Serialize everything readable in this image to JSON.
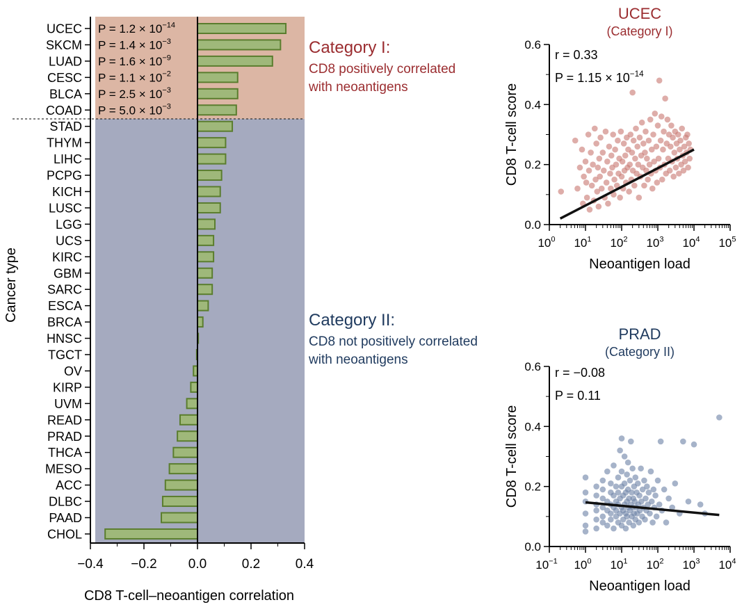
{
  "colors": {
    "cat1_bg": "#dcb6a4",
    "cat2_bg": "#a5aabf",
    "bar_fill": "#9fb87a",
    "bar_stroke": "#5a7d2e",
    "cat1_text": "#9b2d30",
    "cat2_text": "#1f3a5e",
    "ucec_points": "#c97a74",
    "prad_points": "#6f84a8"
  },
  "annotations": {
    "cat1_title": "Category I:",
    "cat1_line1": "CD8 positively correlated",
    "cat1_line2": "with neoantigens",
    "cat2_title": "Category II:",
    "cat2_line1": "CD8 not positively correlated",
    "cat2_line2": "with neoantigens"
  },
  "chart_data": [
    {
      "type": "bar",
      "orientation": "horizontal",
      "xlabel": "CD8 T-cell–neoantigen correlation",
      "ylabel": "Cancer type",
      "xlim": [
        -0.4,
        0.4
      ],
      "x_ticks": [
        "−0.4",
        "−0.2",
        "0.0",
        "0.2",
        "0.4"
      ],
      "categories": [
        "UCEC",
        "SKCM",
        "LUAD",
        "CESC",
        "BLCA",
        "COAD",
        "STAD",
        "THYM",
        "LIHC",
        "PCPG",
        "KICH",
        "LUSC",
        "LGG",
        "UCS",
        "KIRC",
        "GBM",
        "SARC",
        "ESCA",
        "BRCA",
        "HNSC",
        "TGCT",
        "OV",
        "KIRP",
        "UVM",
        "READ",
        "PRAD",
        "THCA",
        "MESO",
        "ACC",
        "DLBC",
        "PAAD",
        "CHOL"
      ],
      "values": [
        0.33,
        0.31,
        0.28,
        0.15,
        0.15,
        0.145,
        0.13,
        0.105,
        0.105,
        0.09,
        0.085,
        0.085,
        0.065,
        0.06,
        0.06,
        0.055,
        0.055,
        0.04,
        0.02,
        0.003,
        -0.003,
        -0.015,
        -0.025,
        -0.04,
        -0.065,
        -0.075,
        -0.09,
        -0.105,
        -0.12,
        -0.13,
        -0.135,
        -0.345
      ],
      "p_values": [
        {
          "prefix": "P = 1.2 × 10",
          "exp": "−14"
        },
        {
          "prefix": "P = 1.4 × 10",
          "exp": "−3"
        },
        {
          "prefix": "P = 1.6 × 10",
          "exp": "−9"
        },
        {
          "prefix": "P = 1.1 × 10",
          "exp": "−2"
        },
        {
          "prefix": "P = 2.5 × 10",
          "exp": "−3"
        },
        {
          "prefix": "P = 5.0 × 10",
          "exp": "−3"
        }
      ],
      "category_I_count": 6
    },
    {
      "type": "scatter",
      "title": "UCEC",
      "subtitle": "(Category I)",
      "xlabel": "Neoantigen load",
      "ylabel": "CD8 T-cell score",
      "x_scale": "log",
      "xlim": [
        1,
        100000
      ],
      "ylim": [
        0,
        0.6
      ],
      "y_ticks": [
        "0.0",
        "0.2",
        "0.4",
        "0.6"
      ],
      "x_ticks": [
        {
          "base": "10",
          "exp": "0"
        },
        {
          "base": "10",
          "exp": "1"
        },
        {
          "base": "10",
          "exp": "2"
        },
        {
          "base": "10",
          "exp": "3"
        },
        {
          "base": "10",
          "exp": "4"
        },
        {
          "base": "10",
          "exp": "5"
        }
      ],
      "stat_r": "r = 0.33",
      "stat_p_prefix": "P = 1.15 × 10",
      "stat_p_exp": "−14",
      "fit_line": {
        "x": [
          2,
          10000
        ],
        "y": [
          0.02,
          0.25
        ]
      },
      "points": [
        [
          2.1,
          0.11
        ],
        [
          5.2,
          0.28
        ],
        [
          6,
          0.12
        ],
        [
          7,
          0.19
        ],
        [
          8,
          0.25
        ],
        [
          8.5,
          0.07
        ],
        [
          9,
          0.16
        ],
        [
          10,
          0.21
        ],
        [
          10.5,
          0.14
        ],
        [
          11,
          0.09
        ],
        [
          12,
          0.3
        ],
        [
          12.5,
          0.18
        ],
        [
          13,
          0.05
        ],
        [
          14,
          0.24
        ],
        [
          15,
          0.13
        ],
        [
          16,
          0.2
        ],
        [
          17,
          0.08
        ],
        [
          18,
          0.32
        ],
        [
          19,
          0.15
        ],
        [
          20,
          0.27
        ],
        [
          21,
          0.11
        ],
        [
          22,
          0.19
        ],
        [
          23,
          0.06
        ],
        [
          24,
          0.22
        ],
        [
          25,
          0.16
        ],
        [
          26,
          0.29
        ],
        [
          28,
          0.12
        ],
        [
          30,
          0.24
        ],
        [
          32,
          0.18
        ],
        [
          34,
          0.09
        ],
        [
          36,
          0.31
        ],
        [
          38,
          0.14
        ],
        [
          40,
          0.21
        ],
        [
          42,
          0.07
        ],
        [
          45,
          0.26
        ],
        [
          48,
          0.17
        ],
        [
          50,
          0.12
        ],
        [
          52,
          0.23
        ],
        [
          55,
          0.19
        ],
        [
          58,
          0.3
        ],
        [
          60,
          0.1
        ],
        [
          63,
          0.15
        ],
        [
          66,
          0.25
        ],
        [
          70,
          0.2
        ],
        [
          74,
          0.13
        ],
        [
          78,
          0.28
        ],
        [
          82,
          0.17
        ],
        [
          86,
          0.22
        ],
        [
          90,
          0.09
        ],
        [
          95,
          0.31
        ],
        [
          100,
          0.16
        ],
        [
          105,
          0.21
        ],
        [
          110,
          0.12
        ],
        [
          115,
          0.27
        ],
        [
          120,
          0.18
        ],
        [
          126,
          0.23
        ],
        [
          132,
          0.14
        ],
        [
          138,
          0.29
        ],
        [
          145,
          0.19
        ],
        [
          152,
          0.25
        ],
        [
          160,
          0.11
        ],
        [
          168,
          0.2
        ],
        [
          176,
          0.3
        ],
        [
          185,
          0.15
        ],
        [
          194,
          0.24
        ],
        [
          200,
          0.44
        ],
        [
          204,
          0.18
        ],
        [
          214,
          0.28
        ],
        [
          225,
          0.13
        ],
        [
          236,
          0.22
        ],
        [
          248,
          0.32
        ],
        [
          260,
          0.17
        ],
        [
          273,
          0.26
        ],
        [
          287,
          0.2
        ],
        [
          300,
          0.09
        ],
        [
          315,
          0.29
        ],
        [
          330,
          0.16
        ],
        [
          347,
          0.23
        ],
        [
          364,
          0.34
        ],
        [
          382,
          0.19
        ],
        [
          400,
          0.27
        ],
        [
          420,
          0.13
        ],
        [
          440,
          0.24
        ],
        [
          460,
          0.31
        ],
        [
          480,
          0.18
        ],
        [
          500,
          0.22
        ],
        [
          530,
          0.15
        ],
        [
          560,
          0.28
        ],
        [
          590,
          0.2
        ],
        [
          620,
          0.35
        ],
        [
          650,
          0.17
        ],
        [
          680,
          0.25
        ],
        [
          710,
          0.12
        ],
        [
          750,
          0.3
        ],
        [
          790,
          0.21
        ],
        [
          830,
          0.37
        ],
        [
          870,
          0.18
        ],
        [
          910,
          0.26
        ],
        [
          950,
          0.14
        ],
        [
          1000,
          0.33
        ],
        [
          1050,
          0.22
        ],
        [
          1100,
          0.48
        ],
        [
          1150,
          0.19
        ],
        [
          1200,
          0.28
        ],
        [
          1260,
          0.36
        ],
        [
          1320,
          0.15
        ],
        [
          1390,
          0.25
        ],
        [
          1460,
          0.31
        ],
        [
          1530,
          0.2
        ],
        [
          1600,
          0.42
        ],
        [
          1680,
          0.17
        ],
        [
          1760,
          0.27
        ],
        [
          1850,
          0.35
        ],
        [
          1940,
          0.22
        ],
        [
          2040,
          0.3
        ],
        [
          2140,
          0.18
        ],
        [
          2250,
          0.26
        ],
        [
          2360,
          0.33
        ],
        [
          2480,
          0.21
        ],
        [
          2600,
          0.29
        ],
        [
          2730,
          0.16
        ],
        [
          2870,
          0.24
        ],
        [
          3000,
          0.31
        ],
        [
          3150,
          0.19
        ],
        [
          3310,
          0.27
        ],
        [
          3470,
          0.22
        ],
        [
          3650,
          0.3
        ],
        [
          3830,
          0.17
        ],
        [
          4020,
          0.25
        ],
        [
          4220,
          0.28
        ],
        [
          4430,
          0.2
        ],
        [
          4650,
          0.32
        ],
        [
          4890,
          0.23
        ],
        [
          5130,
          0.18
        ],
        [
          5390,
          0.26
        ],
        [
          5660,
          0.21
        ],
        [
          5940,
          0.29
        ],
        [
          6240,
          0.24
        ],
        [
          6550,
          0.3
        ],
        [
          6880,
          0.19
        ],
        [
          7220,
          0.27
        ],
        [
          7580,
          0.22
        ],
        [
          8000,
          0.25
        ]
      ]
    },
    {
      "type": "scatter",
      "title": "PRAD",
      "subtitle": "(Category II)",
      "xlabel": "Neoantigen load",
      "ylabel": "CD8 T-cell score",
      "x_scale": "log",
      "xlim": [
        0.1,
        10000
      ],
      "ylim": [
        0,
        0.6
      ],
      "y_ticks": [
        "0.0",
        "0.2",
        "0.4",
        "0.6"
      ],
      "x_ticks": [
        {
          "base": "10",
          "exp": "−1"
        },
        {
          "base": "10",
          "exp": "0"
        },
        {
          "base": "10",
          "exp": "1"
        },
        {
          "base": "10",
          "exp": "2"
        },
        {
          "base": "10",
          "exp": "3"
        },
        {
          "base": "10",
          "exp": "4"
        }
      ],
      "stat_r": "r = −0.08",
      "stat_p_prefix": "P = 0.11",
      "stat_p_exp": "",
      "fit_line": {
        "x": [
          1,
          5000
        ],
        "y": [
          0.147,
          0.105
        ]
      },
      "points": [
        [
          1,
          0.15
        ],
        [
          1,
          0.11
        ],
        [
          1,
          0.07
        ],
        [
          1,
          0.05
        ],
        [
          1,
          0.18
        ],
        [
          1,
          0.23
        ],
        [
          2,
          0.14
        ],
        [
          2,
          0.09
        ],
        [
          2,
          0.2
        ],
        [
          2,
          0.12
        ],
        [
          2,
          0.06
        ],
        [
          2,
          0.17
        ],
        [
          3,
          0.13
        ],
        [
          3,
          0.1
        ],
        [
          3,
          0.22
        ],
        [
          3,
          0.08
        ],
        [
          3,
          0.16
        ],
        [
          3,
          0.19
        ],
        [
          4,
          0.12
        ],
        [
          4,
          0.15
        ],
        [
          4,
          0.07
        ],
        [
          4,
          0.25
        ],
        [
          5,
          0.11
        ],
        [
          5,
          0.18
        ],
        [
          5,
          0.14
        ],
        [
          5,
          0.09
        ],
        [
          5,
          0.21
        ],
        [
          6,
          0.13
        ],
        [
          6,
          0.06
        ],
        [
          6,
          0.17
        ],
        [
          6,
          0.27
        ],
        [
          7,
          0.12
        ],
        [
          7,
          0.2
        ],
        [
          7,
          0.1
        ],
        [
          7,
          0.15
        ],
        [
          8,
          0.08
        ],
        [
          8,
          0.23
        ],
        [
          8,
          0.14
        ],
        [
          8,
          0.18
        ],
        [
          9,
          0.11
        ],
        [
          9,
          0.32
        ],
        [
          9,
          0.16
        ],
        [
          10,
          0.13
        ],
        [
          10,
          0.07
        ],
        [
          10,
          0.2
        ],
        [
          10,
          0.36
        ],
        [
          10,
          0.25
        ],
        [
          11,
          0.12
        ],
        [
          11,
          0.17
        ],
        [
          11,
          0.09
        ],
        [
          12,
          0.21
        ],
        [
          12,
          0.14
        ],
        [
          12,
          0.3
        ],
        [
          13,
          0.11
        ],
        [
          13,
          0.18
        ],
        [
          13,
          0.06
        ],
        [
          14,
          0.15
        ],
        [
          14,
          0.24
        ],
        [
          14,
          0.1
        ],
        [
          15,
          0.13
        ],
        [
          15,
          0.19
        ],
        [
          15,
          0.28
        ],
        [
          16,
          0.08
        ],
        [
          16,
          0.16
        ],
        [
          17,
          0.12
        ],
        [
          17,
          0.22
        ],
        [
          18,
          0.35
        ],
        [
          18,
          0.14
        ],
        [
          19,
          0.1
        ],
        [
          19,
          0.18
        ],
        [
          20,
          0.13
        ],
        [
          20,
          0.26
        ],
        [
          21,
          0.07
        ],
        [
          21,
          0.16
        ],
        [
          22,
          0.2
        ],
        [
          22,
          0.11
        ],
        [
          23,
          0.15
        ],
        [
          24,
          0.09
        ],
        [
          24,
          0.23
        ],
        [
          25,
          0.13
        ],
        [
          26,
          0.18
        ],
        [
          27,
          0.11
        ],
        [
          28,
          0.21
        ],
        [
          29,
          0.14
        ],
        [
          30,
          0.08
        ],
        [
          31,
          0.17
        ],
        [
          32,
          0.12
        ],
        [
          34,
          0.26
        ],
        [
          35,
          0.15
        ],
        [
          37,
          0.1
        ],
        [
          38,
          0.19
        ],
        [
          40,
          0.13
        ],
        [
          42,
          0.22
        ],
        [
          44,
          0.09
        ],
        [
          46,
          0.16
        ],
        [
          48,
          0.12
        ],
        [
          50,
          0.2
        ],
        [
          53,
          0.14
        ],
        [
          56,
          0.18
        ],
        [
          60,
          0.11
        ],
        [
          64,
          0.25
        ],
        [
          68,
          0.15
        ],
        [
          72,
          0.08
        ],
        [
          76,
          0.19
        ],
        [
          80,
          0.13
        ],
        [
          86,
          0.17
        ],
        [
          92,
          0.1
        ],
        [
          100,
          0.22
        ],
        [
          110,
          0.14
        ],
        [
          120,
          0.35
        ],
        [
          130,
          0.12
        ],
        [
          150,
          0.19
        ],
        [
          170,
          0.08
        ],
        [
          200,
          0.16
        ],
        [
          250,
          0.13
        ],
        [
          300,
          0.21
        ],
        [
          400,
          0.11
        ],
        [
          500,
          0.35
        ],
        [
          700,
          0.15
        ],
        [
          1000,
          0.34
        ],
        [
          1500,
          0.14
        ],
        [
          2000,
          0.11
        ],
        [
          5000,
          0.43
        ]
      ]
    }
  ]
}
